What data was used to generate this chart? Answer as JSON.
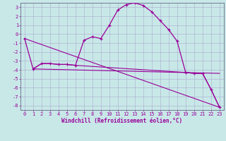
{
  "title": "",
  "xlabel": "Windchill (Refroidissement éolien,°C)",
  "bg_color": "#c8e8e8",
  "line_color": "#990099",
  "grid_color": "#aaaacc",
  "spine_color": "#666688",
  "xlim": [
    -0.5,
    23.5
  ],
  "ylim": [
    -8.5,
    3.5
  ],
  "yticks": [
    3,
    2,
    1,
    0,
    -1,
    -2,
    -3,
    -4,
    -5,
    -6,
    -7,
    -8
  ],
  "xticks": [
    0,
    1,
    2,
    3,
    4,
    5,
    6,
    7,
    8,
    9,
    10,
    11,
    12,
    13,
    14,
    15,
    16,
    17,
    18,
    19,
    20,
    21,
    22,
    23
  ],
  "line1_x": [
    0,
    1,
    2,
    3,
    4,
    5,
    6,
    7,
    8,
    9,
    10,
    11,
    12,
    13,
    14,
    15,
    16,
    17,
    18,
    19,
    20,
    21,
    22,
    23
  ],
  "line1_y": [
    -0.5,
    -3.9,
    -3.3,
    -3.3,
    -3.4,
    -3.4,
    -3.5,
    -0.7,
    -0.3,
    -0.5,
    1.0,
    2.7,
    3.3,
    3.5,
    3.2,
    2.5,
    1.5,
    0.5,
    -0.8,
    -4.3,
    -4.4,
    -4.4,
    -6.2,
    -8.2
  ],
  "line2_x": [
    1,
    2,
    3,
    4,
    5,
    6,
    19,
    20,
    21,
    22,
    23
  ],
  "line2_y": [
    -3.9,
    -3.3,
    -3.3,
    -3.4,
    -3.4,
    -3.5,
    -4.3,
    -4.4,
    -4.4,
    -6.2,
    -8.2
  ],
  "line3_x": [
    0,
    23
  ],
  "line3_y": [
    -0.5,
    -8.2
  ],
  "line4_x": [
    1,
    23
  ],
  "line4_y": [
    -3.9,
    -4.4
  ],
  "tick_fontsize": 5.0,
  "xlabel_fontsize": 5.5
}
